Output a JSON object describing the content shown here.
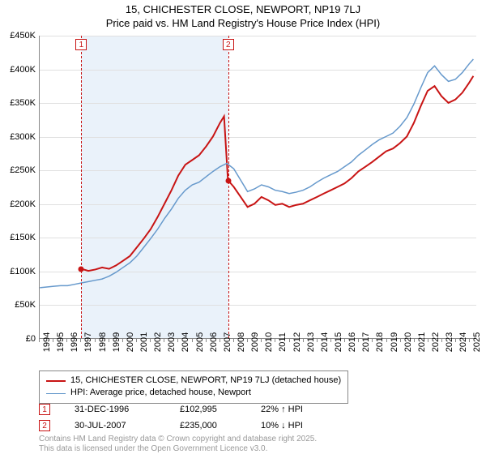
{
  "title": {
    "line1": "15, CHICHESTER CLOSE, NEWPORT, NP19 7LJ",
    "line2": "Price paid vs. HM Land Registry's House Price Index (HPI)",
    "fontsize": 13
  },
  "chart": {
    "type": "line",
    "x_range": [
      1994,
      2025.5
    ],
    "y_range": [
      0,
      450000
    ],
    "y_ticks": [
      0,
      50000,
      100000,
      150000,
      200000,
      250000,
      300000,
      350000,
      400000,
      450000
    ],
    "y_tick_labels": [
      "£0",
      "£50K",
      "£100K",
      "£150K",
      "£200K",
      "£250K",
      "£300K",
      "£350K",
      "£400K",
      "£450K"
    ],
    "x_ticks": [
      1994,
      1995,
      1996,
      1997,
      1998,
      1999,
      2000,
      2001,
      2002,
      2003,
      2004,
      2005,
      2006,
      2007,
      2008,
      2009,
      2010,
      2011,
      2012,
      2013,
      2014,
      2015,
      2016,
      2017,
      2018,
      2019,
      2020,
      2021,
      2022,
      2023,
      2024,
      2025
    ],
    "grid_color": "#e0e0e0",
    "background_color": "#ffffff",
    "highlight_band": {
      "x_start": 1997.0,
      "x_end": 2007.58,
      "color": "#eaf2fa"
    },
    "series": [
      {
        "name": "property",
        "label": "15, CHICHESTER CLOSE, NEWPORT, NP19 7LJ (detached house)",
        "color": "#c81414",
        "line_width": 2,
        "data": [
          [
            1997.0,
            102995
          ],
          [
            1997.5,
            100000
          ],
          [
            1998,
            102000
          ],
          [
            1998.5,
            105000
          ],
          [
            1999,
            103000
          ],
          [
            1999.5,
            108000
          ],
          [
            2000,
            115000
          ],
          [
            2000.5,
            122000
          ],
          [
            2001,
            135000
          ],
          [
            2001.5,
            148000
          ],
          [
            2002,
            162000
          ],
          [
            2002.5,
            180000
          ],
          [
            2003,
            200000
          ],
          [
            2003.5,
            220000
          ],
          [
            2004,
            242000
          ],
          [
            2004.5,
            258000
          ],
          [
            2005,
            265000
          ],
          [
            2005.5,
            272000
          ],
          [
            2006,
            285000
          ],
          [
            2006.5,
            300000
          ],
          [
            2007,
            320000
          ],
          [
            2007.3,
            330000
          ],
          [
            2007.58,
            235000
          ],
          [
            2008,
            225000
          ],
          [
            2008.5,
            210000
          ],
          [
            2009,
            195000
          ],
          [
            2009.5,
            200000
          ],
          [
            2010,
            210000
          ],
          [
            2010.5,
            205000
          ],
          [
            2011,
            198000
          ],
          [
            2011.5,
            200000
          ],
          [
            2012,
            195000
          ],
          [
            2012.5,
            198000
          ],
          [
            2013,
            200000
          ],
          [
            2013.5,
            205000
          ],
          [
            2014,
            210000
          ],
          [
            2014.5,
            215000
          ],
          [
            2015,
            220000
          ],
          [
            2015.5,
            225000
          ],
          [
            2016,
            230000
          ],
          [
            2016.5,
            238000
          ],
          [
            2017,
            248000
          ],
          [
            2017.5,
            255000
          ],
          [
            2018,
            262000
          ],
          [
            2018.5,
            270000
          ],
          [
            2019,
            278000
          ],
          [
            2019.5,
            282000
          ],
          [
            2020,
            290000
          ],
          [
            2020.5,
            300000
          ],
          [
            2021,
            320000
          ],
          [
            2021.5,
            345000
          ],
          [
            2022,
            368000
          ],
          [
            2022.5,
            375000
          ],
          [
            2023,
            360000
          ],
          [
            2023.5,
            350000
          ],
          [
            2024,
            355000
          ],
          [
            2024.5,
            365000
          ],
          [
            2025,
            380000
          ],
          [
            2025.3,
            390000
          ]
        ]
      },
      {
        "name": "hpi",
        "label": "HPI: Average price, detached house, Newport",
        "color": "#6699cc",
        "line_width": 1.5,
        "data": [
          [
            1994,
            75000
          ],
          [
            1994.5,
            76000
          ],
          [
            1995,
            77000
          ],
          [
            1995.5,
            78000
          ],
          [
            1996,
            78000
          ],
          [
            1996.5,
            80000
          ],
          [
            1997,
            82000
          ],
          [
            1997.5,
            84000
          ],
          [
            1998,
            86000
          ],
          [
            1998.5,
            88000
          ],
          [
            1999,
            92000
          ],
          [
            1999.5,
            98000
          ],
          [
            2000,
            105000
          ],
          [
            2000.5,
            112000
          ],
          [
            2001,
            122000
          ],
          [
            2001.5,
            135000
          ],
          [
            2002,
            148000
          ],
          [
            2002.5,
            162000
          ],
          [
            2003,
            178000
          ],
          [
            2003.5,
            192000
          ],
          [
            2004,
            208000
          ],
          [
            2004.5,
            220000
          ],
          [
            2005,
            228000
          ],
          [
            2005.5,
            232000
          ],
          [
            2006,
            240000
          ],
          [
            2006.5,
            248000
          ],
          [
            2007,
            255000
          ],
          [
            2007.5,
            260000
          ],
          [
            2008,
            252000
          ],
          [
            2008.5,
            235000
          ],
          [
            2009,
            218000
          ],
          [
            2009.5,
            222000
          ],
          [
            2010,
            228000
          ],
          [
            2010.5,
            225000
          ],
          [
            2011,
            220000
          ],
          [
            2011.5,
            218000
          ],
          [
            2012,
            215000
          ],
          [
            2012.5,
            217000
          ],
          [
            2013,
            220000
          ],
          [
            2013.5,
            225000
          ],
          [
            2014,
            232000
          ],
          [
            2014.5,
            238000
          ],
          [
            2015,
            243000
          ],
          [
            2015.5,
            248000
          ],
          [
            2016,
            255000
          ],
          [
            2016.5,
            262000
          ],
          [
            2017,
            272000
          ],
          [
            2017.5,
            280000
          ],
          [
            2018,
            288000
          ],
          [
            2018.5,
            295000
          ],
          [
            2019,
            300000
          ],
          [
            2019.5,
            305000
          ],
          [
            2020,
            315000
          ],
          [
            2020.5,
            328000
          ],
          [
            2021,
            348000
          ],
          [
            2021.5,
            372000
          ],
          [
            2022,
            395000
          ],
          [
            2022.5,
            405000
          ],
          [
            2023,
            392000
          ],
          [
            2023.5,
            382000
          ],
          [
            2024,
            385000
          ],
          [
            2024.5,
            395000
          ],
          [
            2025,
            408000
          ],
          [
            2025.3,
            415000
          ]
        ]
      }
    ],
    "sale_markers": [
      {
        "n": "1",
        "x": 1997.0,
        "y": 102995,
        "color": "#c81414"
      },
      {
        "n": "2",
        "x": 2007.58,
        "y": 235000,
        "color": "#c81414"
      }
    ]
  },
  "legend": {
    "items": [
      {
        "color": "#c81414",
        "width": 2,
        "label": "15, CHICHESTER CLOSE, NEWPORT, NP19 7LJ (detached house)"
      },
      {
        "color": "#6699cc",
        "width": 1.5,
        "label": "HPI: Average price, detached house, Newport"
      }
    ]
  },
  "sales": [
    {
      "n": "1",
      "date": "31-DEC-1996",
      "price": "£102,995",
      "hpi": "22% ↑ HPI"
    },
    {
      "n": "2",
      "date": "30-JUL-2007",
      "price": "£235,000",
      "hpi": "10% ↓ HPI"
    }
  ],
  "footer": {
    "line1": "Contains HM Land Registry data © Crown copyright and database right 2025.",
    "line2": "This data is licensed under the Open Government Licence v3.0."
  }
}
